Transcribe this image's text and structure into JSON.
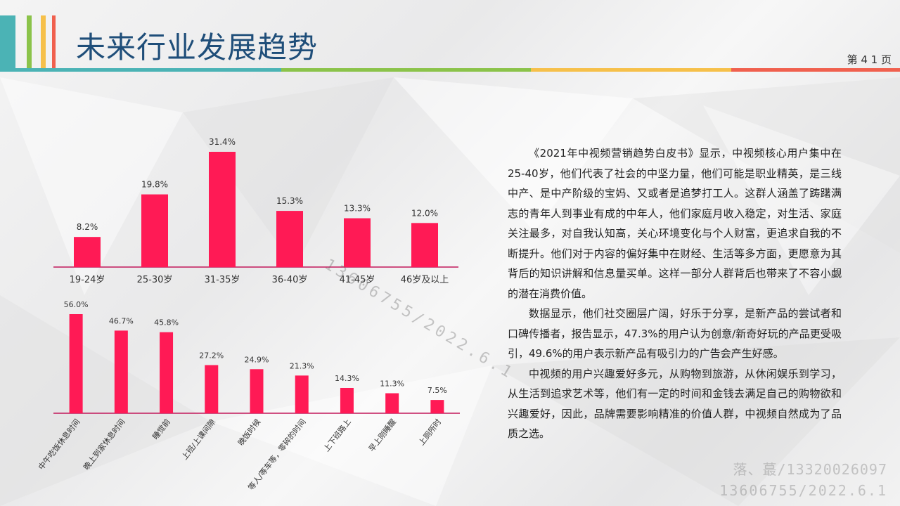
{
  "header": {
    "title": "未来行业发展趋势",
    "page_number": "第 4 1 页"
  },
  "colors": {
    "bar": "#ff1a55",
    "axis": "#c2185b",
    "title": "#1f4e79",
    "accent_teal": "#4bb3b5",
    "accent_green": "#8bc34a",
    "accent_yellow": "#f6c04a",
    "accent_red": "#f0604e"
  },
  "chart_data": [
    {
      "type": "bar",
      "categories": [
        "19-24岁",
        "25-30岁",
        "31-35岁",
        "36-40岁",
        "41-45岁",
        "46岁及以上"
      ],
      "values": [
        8.2,
        19.8,
        31.4,
        15.3,
        13.3,
        12.0
      ],
      "data_labels": [
        "8.2%",
        "19.8%",
        "31.4%",
        "15.3%",
        "13.3%",
        "12.0%"
      ],
      "title": "",
      "xlabel": "",
      "ylabel": "",
      "ylim": [
        0,
        31.4
      ],
      "grid": false
    },
    {
      "type": "bar",
      "categories": [
        "中午吃饭休息时间",
        "晚上到家休息时间",
        "睡觉前",
        "上班/上课间隙",
        "晚饭时候",
        "等人/等车等，零碎的时间",
        "上下班路上",
        "早上刚睡醒",
        "上厕所时"
      ],
      "values": [
        56.0,
        46.7,
        45.8,
        27.2,
        24.9,
        21.3,
        14.3,
        11.3,
        7.5
      ],
      "data_labels": [
        "56.0%",
        "46.7%",
        "45.8%",
        "27.2%",
        "24.9%",
        "21.3%",
        "14.3%",
        "11.3%",
        "7.5%"
      ],
      "title": "",
      "xlabel": "",
      "ylabel": "",
      "ylim": [
        0,
        56.0
      ],
      "grid": false
    }
  ],
  "text": {
    "paragraphs": [
      "《2021年中视频营销趋势白皮书》显示，中视频核心用户集中在25-40岁，他们代表了社会的中坚力量，他们可能是职业精英，是三线中产、是中产阶级的宝妈、又或者是追梦打工人。这群人涵盖了踌躇满志的青年人到事业有成的中年人，他们家庭月收入稳定，对生活、家庭关注最多，对自我认知高，关心环境变化与个人财富，更追求自我的不断提升。他们对于内容的偏好集中在财经、生活等多方面，更愿意为其背后的知识讲解和信息量买单。这样一部分人群背后也带来了不容小觑的潜在消费价值。",
      "数据显示，他们社交圈层广阔，好乐于分享，是新产品的尝试者和口碑传播者，报告显示，47.3%的用户认为创意/新奇好玩的产品更受吸引，49.6%的用户表示新产品有吸引力的广告会产生好感。",
      "中视频的用户兴趣爱好多元，从购物到旅游，从休闲娱乐到学习，从生活到追求艺术等，他们有一定的时间和金钱去满足自己的购物欲和兴趣爱好，因此，品牌需要影响精准的价值人群，中视频自然成为了品质之选。"
    ]
  },
  "watermarks": {
    "line1": "落、蕞/13320026097",
    "line2": "13606755/2022.6.1",
    "diagonal": "13606755/2022.6.1"
  }
}
